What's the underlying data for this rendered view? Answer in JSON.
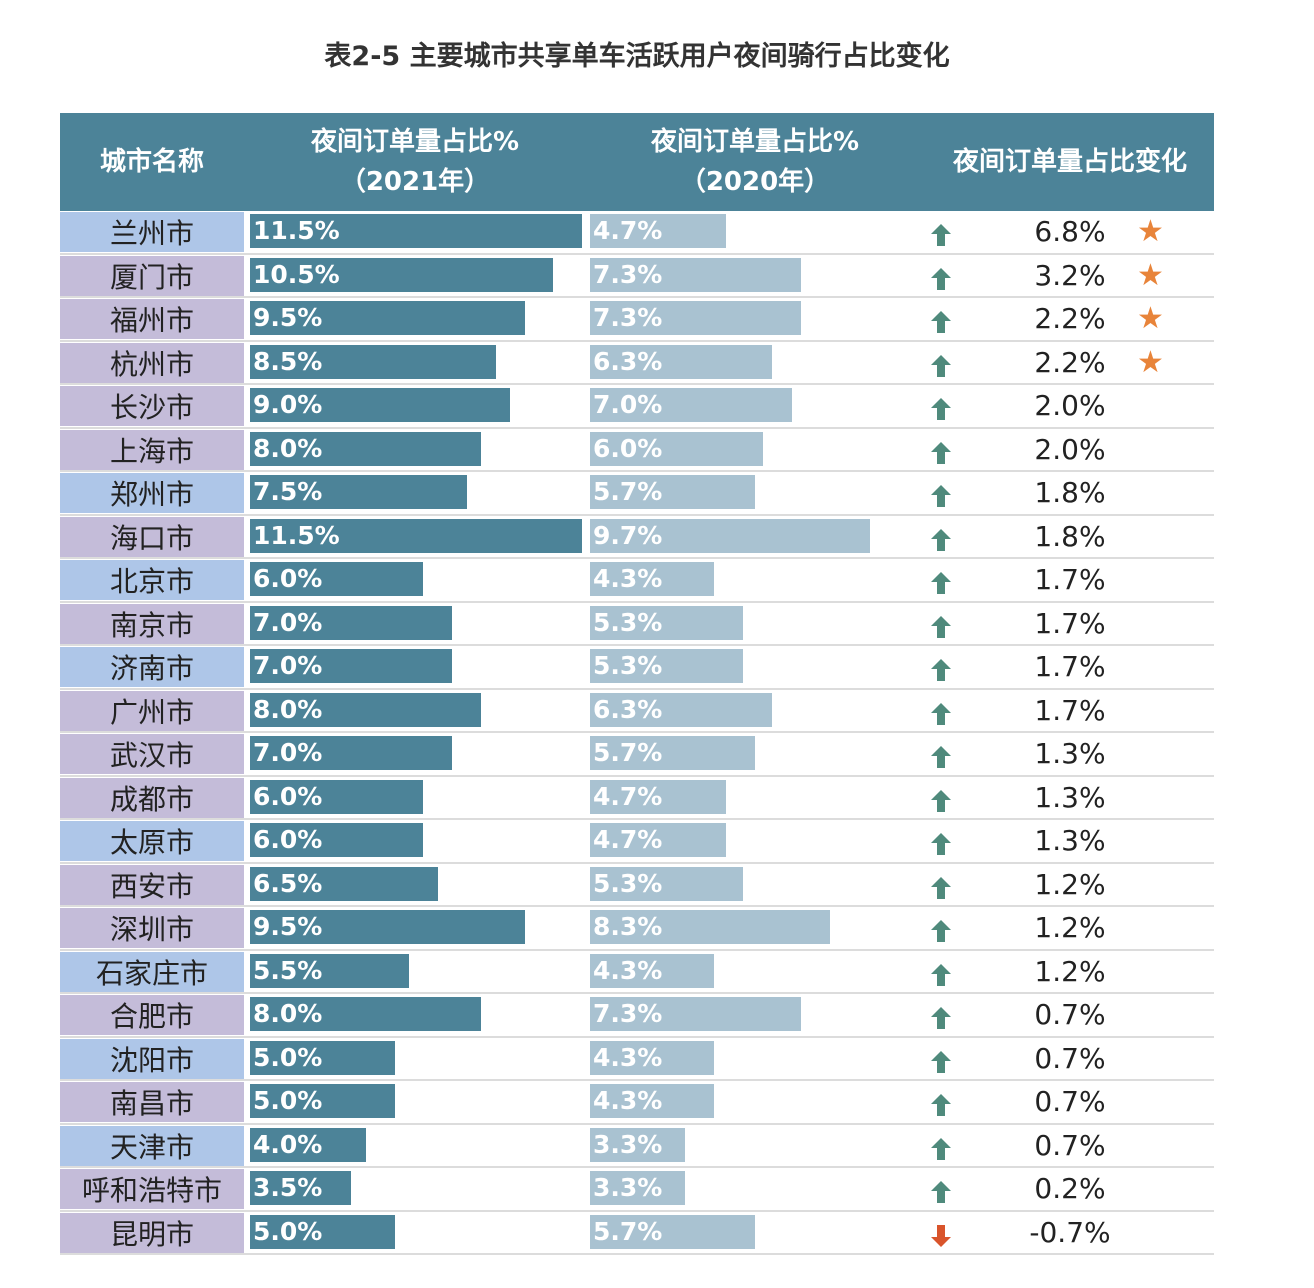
{
  "title": "表2-5 主要城市共享单车活跃用户夜间骑行占比变化",
  "header": {
    "city": "城市名称",
    "col2021_line1": "夜间订单量占比%",
    "col2021_line2": "（2021年）",
    "col2020_line1": "夜间订单量占比%",
    "col2020_line2": "（2020年）",
    "change": "夜间订单量占比变化"
  },
  "colors": {
    "header_bg": "#4c8398",
    "bar_2021": "#4c8398",
    "bar_2020": "#a9c2d1",
    "city_bg_blue": "#aec6e8",
    "city_bg_purple": "#c4bcd9",
    "arrow_up": "#4f8a7c",
    "arrow_down": "#d9542b",
    "star": "#e8843a"
  },
  "icons": {
    "up": "arrow-up-icon",
    "down": "arrow-down-icon",
    "star": "star-icon"
  },
  "chart_data": {
    "type": "table",
    "columns": [
      "城市名称",
      "夜间订单量占比%（2021年）",
      "夜间订单量占比%（2020年）",
      "夜间订单量占比变化"
    ],
    "rows": [
      {
        "city": "兰州市",
        "v2021": 11.5,
        "l2021": "11.5%",
        "v2020": 4.7,
        "l2020": "4.7%",
        "change": "6.8%",
        "dir": "up",
        "star": true,
        "shade": "blue"
      },
      {
        "city": "厦门市",
        "v2021": 10.5,
        "l2021": "10.5%",
        "v2020": 7.3,
        "l2020": "7.3%",
        "change": "3.2%",
        "dir": "up",
        "star": true,
        "shade": "purple"
      },
      {
        "city": "福州市",
        "v2021": 9.5,
        "l2021": "9.5%",
        "v2020": 7.3,
        "l2020": "7.3%",
        "change": "2.2%",
        "dir": "up",
        "star": true,
        "shade": "purple"
      },
      {
        "city": "杭州市",
        "v2021": 8.5,
        "l2021": "8.5%",
        "v2020": 6.3,
        "l2020": "6.3%",
        "change": "2.2%",
        "dir": "up",
        "star": true,
        "shade": "purple"
      },
      {
        "city": "长沙市",
        "v2021": 9.0,
        "l2021": "9.0%",
        "v2020": 7.0,
        "l2020": "7.0%",
        "change": "2.0%",
        "dir": "up",
        "star": false,
        "shade": "purple"
      },
      {
        "city": "上海市",
        "v2021": 8.0,
        "l2021": "8.0%",
        "v2020": 6.0,
        "l2020": "6.0%",
        "change": "2.0%",
        "dir": "up",
        "star": false,
        "shade": "purple"
      },
      {
        "city": "郑州市",
        "v2021": 7.5,
        "l2021": "7.5%",
        "v2020": 5.7,
        "l2020": "5.7%",
        "change": "1.8%",
        "dir": "up",
        "star": false,
        "shade": "blue"
      },
      {
        "city": "海口市",
        "v2021": 11.5,
        "l2021": "11.5%",
        "v2020": 9.7,
        "l2020": "9.7%",
        "change": "1.8%",
        "dir": "up",
        "star": false,
        "shade": "purple"
      },
      {
        "city": "北京市",
        "v2021": 6.0,
        "l2021": "6.0%",
        "v2020": 4.3,
        "l2020": "4.3%",
        "change": "1.7%",
        "dir": "up",
        "star": false,
        "shade": "blue"
      },
      {
        "city": "南京市",
        "v2021": 7.0,
        "l2021": "7.0%",
        "v2020": 5.3,
        "l2020": "5.3%",
        "change": "1.7%",
        "dir": "up",
        "star": false,
        "shade": "purple"
      },
      {
        "city": "济南市",
        "v2021": 7.0,
        "l2021": "7.0%",
        "v2020": 5.3,
        "l2020": "5.3%",
        "change": "1.7%",
        "dir": "up",
        "star": false,
        "shade": "blue"
      },
      {
        "city": "广州市",
        "v2021": 8.0,
        "l2021": "8.0%",
        "v2020": 6.3,
        "l2020": "6.3%",
        "change": "1.7%",
        "dir": "up",
        "star": false,
        "shade": "purple"
      },
      {
        "city": "武汉市",
        "v2021": 7.0,
        "l2021": "7.0%",
        "v2020": 5.7,
        "l2020": "5.7%",
        "change": "1.3%",
        "dir": "up",
        "star": false,
        "shade": "purple"
      },
      {
        "city": "成都市",
        "v2021": 6.0,
        "l2021": "6.0%",
        "v2020": 4.7,
        "l2020": "4.7%",
        "change": "1.3%",
        "dir": "up",
        "star": false,
        "shade": "purple"
      },
      {
        "city": "太原市",
        "v2021": 6.0,
        "l2021": "6.0%",
        "v2020": 4.7,
        "l2020": "4.7%",
        "change": "1.3%",
        "dir": "up",
        "star": false,
        "shade": "blue"
      },
      {
        "city": "西安市",
        "v2021": 6.5,
        "l2021": "6.5%",
        "v2020": 5.3,
        "l2020": "5.3%",
        "change": "1.2%",
        "dir": "up",
        "star": false,
        "shade": "purple"
      },
      {
        "city": "深圳市",
        "v2021": 9.5,
        "l2021": "9.5%",
        "v2020": 8.3,
        "l2020": "8.3%",
        "change": "1.2%",
        "dir": "up",
        "star": false,
        "shade": "purple"
      },
      {
        "city": "石家庄市",
        "v2021": 5.5,
        "l2021": "5.5%",
        "v2020": 4.3,
        "l2020": "4.3%",
        "change": "1.2%",
        "dir": "up",
        "star": false,
        "shade": "blue"
      },
      {
        "city": "合肥市",
        "v2021": 8.0,
        "l2021": "8.0%",
        "v2020": 7.3,
        "l2020": "7.3%",
        "change": "0.7%",
        "dir": "up",
        "star": false,
        "shade": "purple"
      },
      {
        "city": "沈阳市",
        "v2021": 5.0,
        "l2021": "5.0%",
        "v2020": 4.3,
        "l2020": "4.3%",
        "change": "0.7%",
        "dir": "up",
        "star": false,
        "shade": "blue"
      },
      {
        "city": "南昌市",
        "v2021": 5.0,
        "l2021": "5.0%",
        "v2020": 4.3,
        "l2020": "4.3%",
        "change": "0.7%",
        "dir": "up",
        "star": false,
        "shade": "purple"
      },
      {
        "city": "天津市",
        "v2021": 4.0,
        "l2021": "4.0%",
        "v2020": 3.3,
        "l2020": "3.3%",
        "change": "0.7%",
        "dir": "up",
        "star": false,
        "shade": "blue"
      },
      {
        "city": "呼和浩特市",
        "v2021": 3.5,
        "l2021": "3.5%",
        "v2020": 3.3,
        "l2020": "3.3%",
        "change": "0.2%",
        "dir": "up",
        "star": false,
        "shade": "purple"
      },
      {
        "city": "昆明市",
        "v2021": 5.0,
        "l2021": "5.0%",
        "v2020": 5.7,
        "l2020": "5.7%",
        "change": "-0.7%",
        "dir": "down",
        "star": false,
        "shade": "purple"
      }
    ]
  }
}
